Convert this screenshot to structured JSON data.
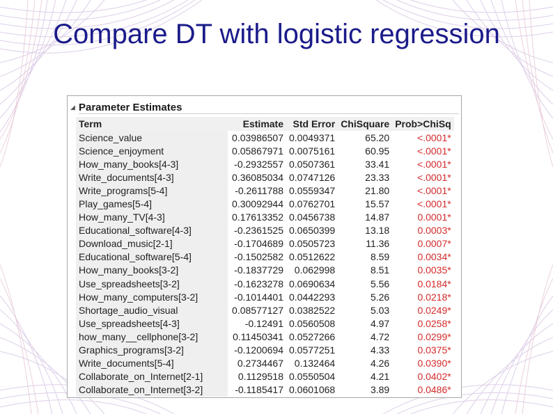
{
  "slide": {
    "title": "Compare DT with logistic regression"
  },
  "report": {
    "title": "Parameter Estimates",
    "columns": [
      "Term",
      "Estimate",
      "Std Error",
      "ChiSquare",
      "Prob>ChiSq"
    ],
    "rows": [
      [
        "Science_value",
        "0.03986507",
        "0.0049371",
        "65.20",
        "<.0001*"
      ],
      [
        "Science_enjoyment",
        "0.05867971",
        "0.0075161",
        "60.95",
        "<.0001*"
      ],
      [
        "How_many_books[4-3]",
        "-0.2932557",
        "0.0507361",
        "33.41",
        "<.0001*"
      ],
      [
        "Write_documents[4-3]",
        "0.36085034",
        "0.0747126",
        "23.33",
        "<.0001*"
      ],
      [
        "Write_programs[5-4]",
        "-0.2611788",
        "0.0559347",
        "21.80",
        "<.0001*"
      ],
      [
        "Play_games[5-4]",
        "0.30092944",
        "0.0762701",
        "15.57",
        "<.0001*"
      ],
      [
        "How_many_TV[4-3]",
        "0.17613352",
        "0.0456738",
        "14.87",
        "0.0001*"
      ],
      [
        "Educational_software[4-3]",
        "-0.2361525",
        "0.0650399",
        "13.18",
        "0.0003*"
      ],
      [
        "Download_music[2-1]",
        "-0.1704689",
        "0.0505723",
        "11.36",
        "0.0007*"
      ],
      [
        "Educational_software[5-4]",
        "-0.1502582",
        "0.0512622",
        "8.59",
        "0.0034*"
      ],
      [
        "How_many_books[3-2]",
        "-0.1837729",
        "0.062998",
        "8.51",
        "0.0035*"
      ],
      [
        "Use_spreadsheets[3-2]",
        "-0.1623278",
        "0.0690634",
        "5.56",
        "0.0184*"
      ],
      [
        "How_many_computers[3-2]",
        "-0.1014401",
        "0.0442293",
        "5.26",
        "0.0218*"
      ],
      [
        "Shortage_audio_visual",
        "0.08577127",
        "0.0382522",
        "5.03",
        "0.0249*"
      ],
      [
        "Use_spreadsheets[4-3]",
        "-0.12491",
        "0.0560508",
        "4.97",
        "0.0258*"
      ],
      [
        "how_many__cellphone[3-2]",
        "0.11450341",
        "0.0527266",
        "4.72",
        "0.0299*"
      ],
      [
        "Graphics_programs[3-2]",
        "-0.1200694",
        "0.0577251",
        "4.33",
        "0.0375*"
      ],
      [
        "Write_documents[5-4]",
        "0.2734467",
        "0.132464",
        "4.26",
        "0.0390*"
      ],
      [
        "Collaborate_on_Internet[2-1]",
        "0.1129518",
        "0.0550504",
        "4.21",
        "0.0402*"
      ],
      [
        "Collaborate_on_Internet[3-2]",
        "-0.1185417",
        "0.0601068",
        "3.89",
        "0.0486*"
      ]
    ]
  },
  "colors": {
    "title": "#1b1b8a",
    "significant": "#d42a2a",
    "term_background": "#efefef",
    "decoration": [
      "#c9b6d8",
      "#d9c2e4",
      "#e8c6d3"
    ]
  },
  "icons": {
    "disclosure": "triangle-down-icon"
  }
}
